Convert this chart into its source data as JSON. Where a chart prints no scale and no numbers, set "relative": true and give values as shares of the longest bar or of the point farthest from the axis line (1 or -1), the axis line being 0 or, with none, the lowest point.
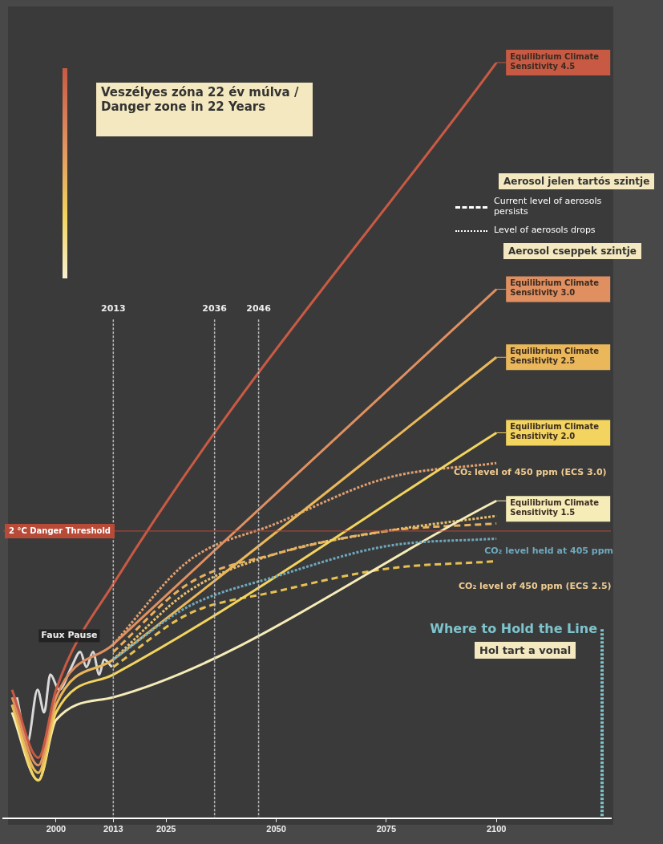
{
  "chart_data": {
    "type": "line",
    "relative": true,
    "marker": "none",
    "xticks": [
      2000,
      2013,
      2025,
      2050,
      2075,
      2100
    ],
    "xlim": [
      1988,
      2126
    ],
    "legend": "right",
    "series": [
      {
        "name": "Equilibrium Climate Sensitivity 4.5",
        "color": "#c85a44",
        "line_style": "solid",
        "x": [
          1990,
          1996,
          2000,
          2013,
          2100
        ],
        "values": [
          0.17,
          0.08,
          0.17,
          0.31,
          1
        ]
      },
      {
        "name": "Equilibrium Climate Sensitivity 3.0",
        "color": "#e09060",
        "line_style": "solid",
        "x": [
          1990,
          1996,
          2000,
          2013,
          2100
        ],
        "values": [
          0.16,
          0.07,
          0.16,
          0.23,
          0.7
        ]
      },
      {
        "name": "Equilibrium Climate Sensitivity 2.5",
        "color": "#eab85a",
        "line_style": "solid",
        "x": [
          1990,
          1996,
          2000,
          2013,
          2100
        ],
        "values": [
          0.15,
          0.06,
          0.15,
          0.21,
          0.61
        ]
      },
      {
        "name": "Equilibrium Climate Sensitivity 2.0",
        "color": "#f2d45e",
        "line_style": "solid",
        "x": [
          1990,
          1996,
          2000,
          2013,
          2100
        ],
        "values": [
          0.15,
          0.05,
          0.14,
          0.19,
          0.51
        ]
      },
      {
        "name": "Equilibrium Climate Sensitivity 1.5",
        "color": "#f6ecb8",
        "line_style": "solid",
        "x": [
          1990,
          1996,
          2000,
          2013,
          2100
        ],
        "values": [
          0.14,
          0.05,
          0.13,
          0.16,
          0.42
        ]
      },
      {
        "color": "#d9d9d9",
        "line_style": "solid",
        "x": [
          1991.1,
          1993.5,
          1995.8,
          1997.3,
          1998.7,
          2000.7,
          2003.5,
          2005.5,
          2006.9,
          2008.4,
          2009.8,
          2010.9,
          2012.7
        ],
        "values": [
          0.16,
          0.1,
          0.17,
          0.14,
          0.19,
          0.17,
          0.2,
          0.22,
          0.2,
          0.22,
          0.19,
          0.21,
          0.2
        ]
      },
      {
        "color": "#e0a070",
        "line_style": "dotted",
        "x": [
          2013,
          2030,
          2050,
          2075,
          2100
        ],
        "values": [
          0.23,
          0.34,
          0.39,
          0.45,
          0.47
        ]
      },
      {
        "color": "#e8b060",
        "line_style": "dashed",
        "x": [
          2013,
          2030,
          2050,
          2075,
          2100
        ],
        "values": [
          0.22,
          0.31,
          0.35,
          0.38,
          0.39
        ]
      },
      {
        "color": "#e8c070",
        "line_style": "dotted",
        "x": [
          2013,
          2030,
          2050,
          2075,
          2100
        ],
        "values": [
          0.21,
          0.3,
          0.35,
          0.38,
          0.4
        ]
      },
      {
        "color": "#e8c050",
        "line_style": "dashed",
        "x": [
          2013,
          2030,
          2050,
          2075,
          2100
        ],
        "values": [
          0.2,
          0.27,
          0.3,
          0.33,
          0.34
        ]
      },
      {
        "name": "CO₂ level held at 405 ppm",
        "color": "#6fa9bd",
        "line_style": "dotted",
        "x": [
          2013,
          2030,
          2050,
          2075,
          2100
        ],
        "values": [
          0.21,
          0.28,
          0.32,
          0.36,
          0.37
        ]
      }
    ],
    "ref_lines": [
      {
        "axis": "x",
        "value": 2013,
        "label": "2013",
        "line_style": "dotted"
      },
      {
        "axis": "x",
        "value": 2036,
        "label": "2036",
        "line_style": "dotted"
      },
      {
        "axis": "x",
        "value": 2046,
        "label": "2046",
        "line_style": "dotted"
      },
      {
        "axis": "x",
        "value": 2124,
        "label": "Where to Hold the Line",
        "color": "#7ec4cc",
        "line_style": "dotted"
      },
      {
        "axis": "y",
        "value": 0.38,
        "label": "2 °C Danger Threshold",
        "color": "#b84a38",
        "line_style": "solid"
      }
    ],
    "annotations": [
      "Veszélyes zóna 22 év múlva / Danger zone in 22 Years",
      "Aerosol jelen tartós szintje",
      "Current level of aerosols persists",
      "Level of aerosols drops",
      "Aerosol cseppek szintje",
      "Hol tart a vonal",
      {
        "text": "Faux Pause",
        "x": 2003,
        "y": 0.22
      },
      "CO₂ level of 450 ppm (ECS 3.0)",
      "CO₂ level of 450 ppm (ECS 2.5)"
    ]
  }
}
